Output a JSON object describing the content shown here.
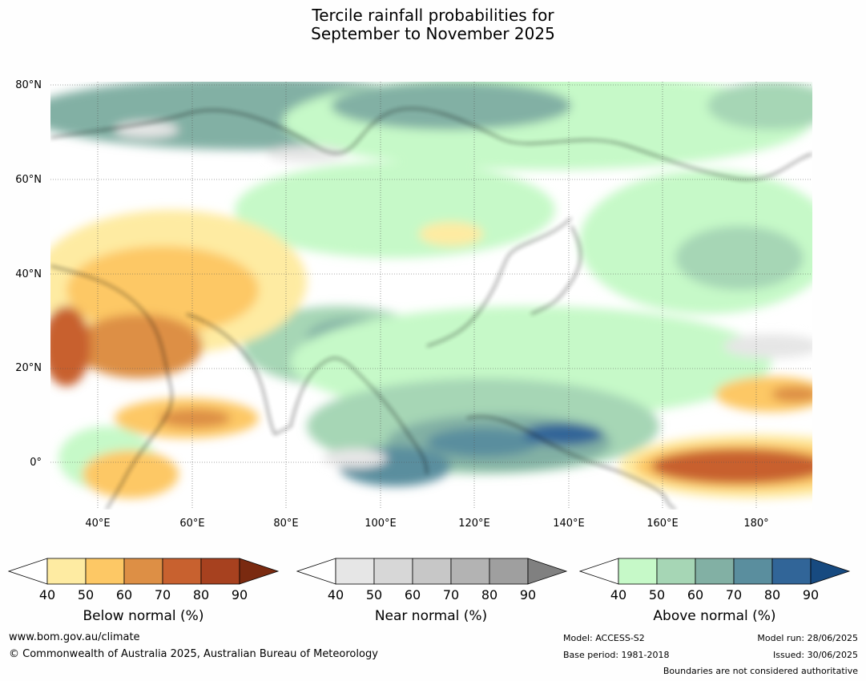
{
  "title": {
    "line1": "Tercile rainfall probabilities for",
    "line2": "September to November 2025"
  },
  "map": {
    "lat_labels": [
      "80°N",
      "60°N",
      "40°N",
      "20°N",
      "0°"
    ],
    "lon_labels": [
      "40°E",
      "60°E",
      "80°E",
      "100°E",
      "120°E",
      "140°E",
      "160°E",
      "180°"
    ]
  },
  "colorbars": [
    {
      "label": "Below normal (%)",
      "ticks": [
        "40",
        "50",
        "60",
        "70",
        "80",
        "90"
      ],
      "colors": [
        "#ffffff",
        "#feeba2",
        "#fdc865",
        "#dd8f45",
        "#c8612f",
        "#a7411f",
        "#7a2a10"
      ]
    },
    {
      "label": "Near normal (%)",
      "ticks": [
        "40",
        "50",
        "60",
        "70",
        "80",
        "90"
      ],
      "colors": [
        "#ffffff",
        "#e6e6e6",
        "#d7d7d7",
        "#c7c7c7",
        "#b3b3b3",
        "#9f9f9f",
        "#808080"
      ]
    },
    {
      "label": "Above normal (%)",
      "ticks": [
        "40",
        "50",
        "60",
        "70",
        "80",
        "90"
      ],
      "colors": [
        "#ffffff",
        "#c6f9c8",
        "#a6d6b5",
        "#82b0a4",
        "#5a8e9e",
        "#316598",
        "#174a80"
      ]
    }
  ],
  "footer": {
    "website": "www.bom.gov.au/climate",
    "copyright": "© Commonwealth of Australia 2025, Australian Bureau of Meteorology",
    "model": "Model: ACCESS-S2",
    "base_period": "Base period: 1981-2018",
    "model_run": "Model run: 28/06/2025",
    "issued": "Issued: 30/06/2025",
    "disclaimer": "Boundaries are not considered authoritative"
  }
}
